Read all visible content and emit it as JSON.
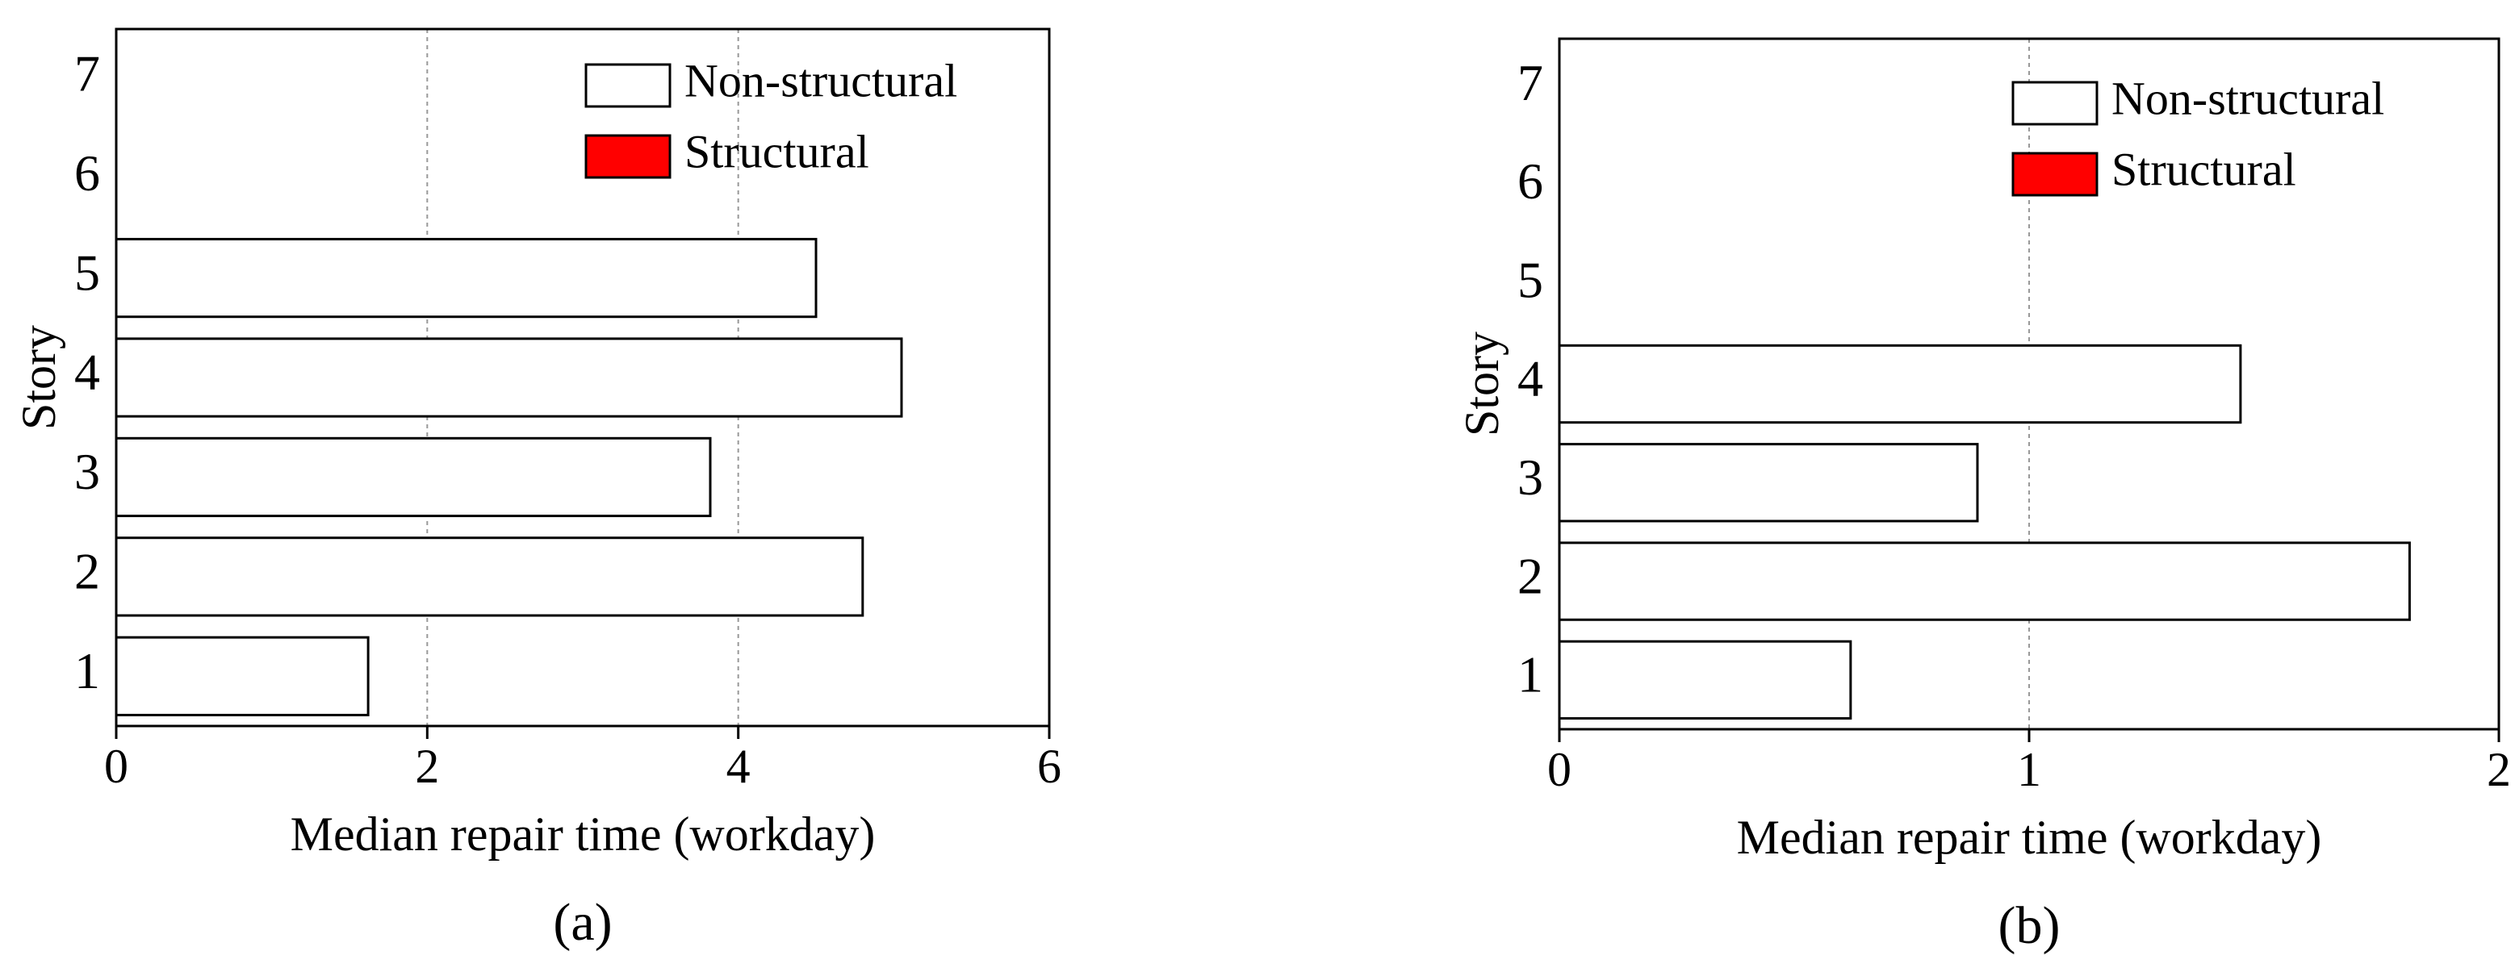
{
  "chart_data": [
    {
      "type": "bar",
      "orientation": "horizontal",
      "caption": "(a)",
      "xlabel": "Median repair time (workday)",
      "ylabel": "Story",
      "categories": [
        "1",
        "2",
        "3",
        "4",
        "5",
        "6",
        "7"
      ],
      "series": [
        {
          "name": "Non-structural",
          "color": "#ffffff",
          "values": [
            1.62,
            4.8,
            3.82,
            5.05,
            4.5,
            null,
            null
          ]
        },
        {
          "name": "Structural",
          "color": "#ff0000",
          "values": [
            0,
            0,
            0,
            0,
            0,
            0,
            0
          ]
        }
      ],
      "xlim": [
        0,
        6
      ],
      "xticks": [
        0,
        2,
        4,
        6
      ],
      "grid": true,
      "legend": "upper right"
    },
    {
      "type": "bar",
      "orientation": "horizontal",
      "caption": "(b)",
      "xlabel": "Median repair time (workday)",
      "ylabel": "Story",
      "categories": [
        "1",
        "2",
        "3",
        "4",
        "5",
        "6",
        "7"
      ],
      "series": [
        {
          "name": "Non-structural",
          "color": "#ffffff",
          "values": [
            0.62,
            1.81,
            0.89,
            1.45,
            null,
            null,
            null
          ]
        },
        {
          "name": "Structural",
          "color": "#ff0000",
          "values": [
            0,
            0,
            0,
            0,
            0,
            0,
            0
          ]
        }
      ],
      "xlim": [
        0,
        2
      ],
      "xticks": [
        0,
        1,
        2
      ],
      "grid": true,
      "legend": "upper right"
    }
  ]
}
